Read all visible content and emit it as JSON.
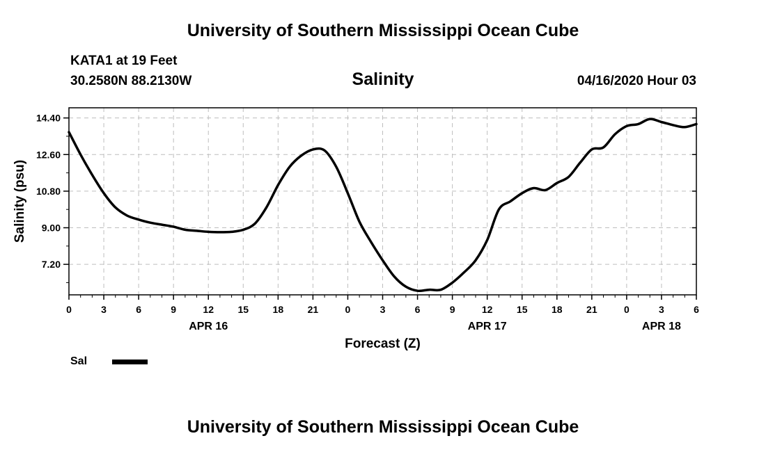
{
  "header": {
    "title": "University of Southern Mississippi Ocean Cube",
    "station": "KATA1 at 19 Feet",
    "coordinates": "30.2580N 88.2130W",
    "parameter": "Salinity",
    "datetime": "04/16/2020 Hour 03"
  },
  "footer": {
    "title": "University of Southern Mississippi Ocean Cube"
  },
  "legend": {
    "label": "Sal",
    "color": "#000000"
  },
  "chart_data": {
    "type": "line",
    "xlabel": "Forecast (Z)",
    "ylabel": "Salinity (psu)",
    "xlim": [
      0,
      54
    ],
    "ylim": [
      5.7,
      14.9
    ],
    "grid": true,
    "yticks": [
      7.2,
      9.0,
      10.8,
      12.6,
      14.4
    ],
    "ytick_labels": [
      "7.20",
      "9.00",
      "10.80",
      "12.60",
      "14.40"
    ],
    "xticks": [
      0,
      3,
      6,
      9,
      12,
      15,
      18,
      21,
      24,
      27,
      30,
      33,
      36,
      39,
      42,
      45,
      48,
      51,
      54
    ],
    "xtick_labels": [
      "0",
      "3",
      "6",
      "9",
      "12",
      "15",
      "18",
      "21",
      "0",
      "3",
      "6",
      "9",
      "12",
      "15",
      "18",
      "21",
      "0",
      "3",
      "6"
    ],
    "date_labels": [
      {
        "x": 12,
        "label": "APR 16"
      },
      {
        "x": 36,
        "label": "APR 17"
      },
      {
        "x": 51,
        "label": "APR 18"
      }
    ],
    "series": [
      {
        "name": "Sal",
        "color": "#000000",
        "x": [
          0,
          1,
          2,
          3,
          4,
          5,
          6,
          7,
          8,
          9,
          10,
          11,
          12,
          13,
          14,
          15,
          16,
          17,
          18,
          19,
          20,
          21,
          22,
          23,
          24,
          25,
          26,
          27,
          28,
          29,
          30,
          31,
          32,
          33,
          34,
          35,
          36,
          37,
          38,
          39,
          40,
          41,
          42,
          43,
          44,
          45,
          46,
          47,
          48,
          49,
          50,
          51,
          52,
          53,
          54
        ],
        "y": [
          13.7,
          12.6,
          11.6,
          10.7,
          10.0,
          9.6,
          9.4,
          9.25,
          9.15,
          9.05,
          8.9,
          8.85,
          8.8,
          8.78,
          8.8,
          8.9,
          9.2,
          10.0,
          11.1,
          12.0,
          12.55,
          12.85,
          12.8,
          12.0,
          10.7,
          9.3,
          8.3,
          7.4,
          6.6,
          6.1,
          5.9,
          5.95,
          5.95,
          6.3,
          6.8,
          7.4,
          8.4,
          9.9,
          10.3,
          10.7,
          10.95,
          10.85,
          11.2,
          11.5,
          12.2,
          12.85,
          12.95,
          13.6,
          14.0,
          14.1,
          14.35,
          14.2,
          14.05,
          13.95,
          14.1
        ]
      }
    ]
  }
}
